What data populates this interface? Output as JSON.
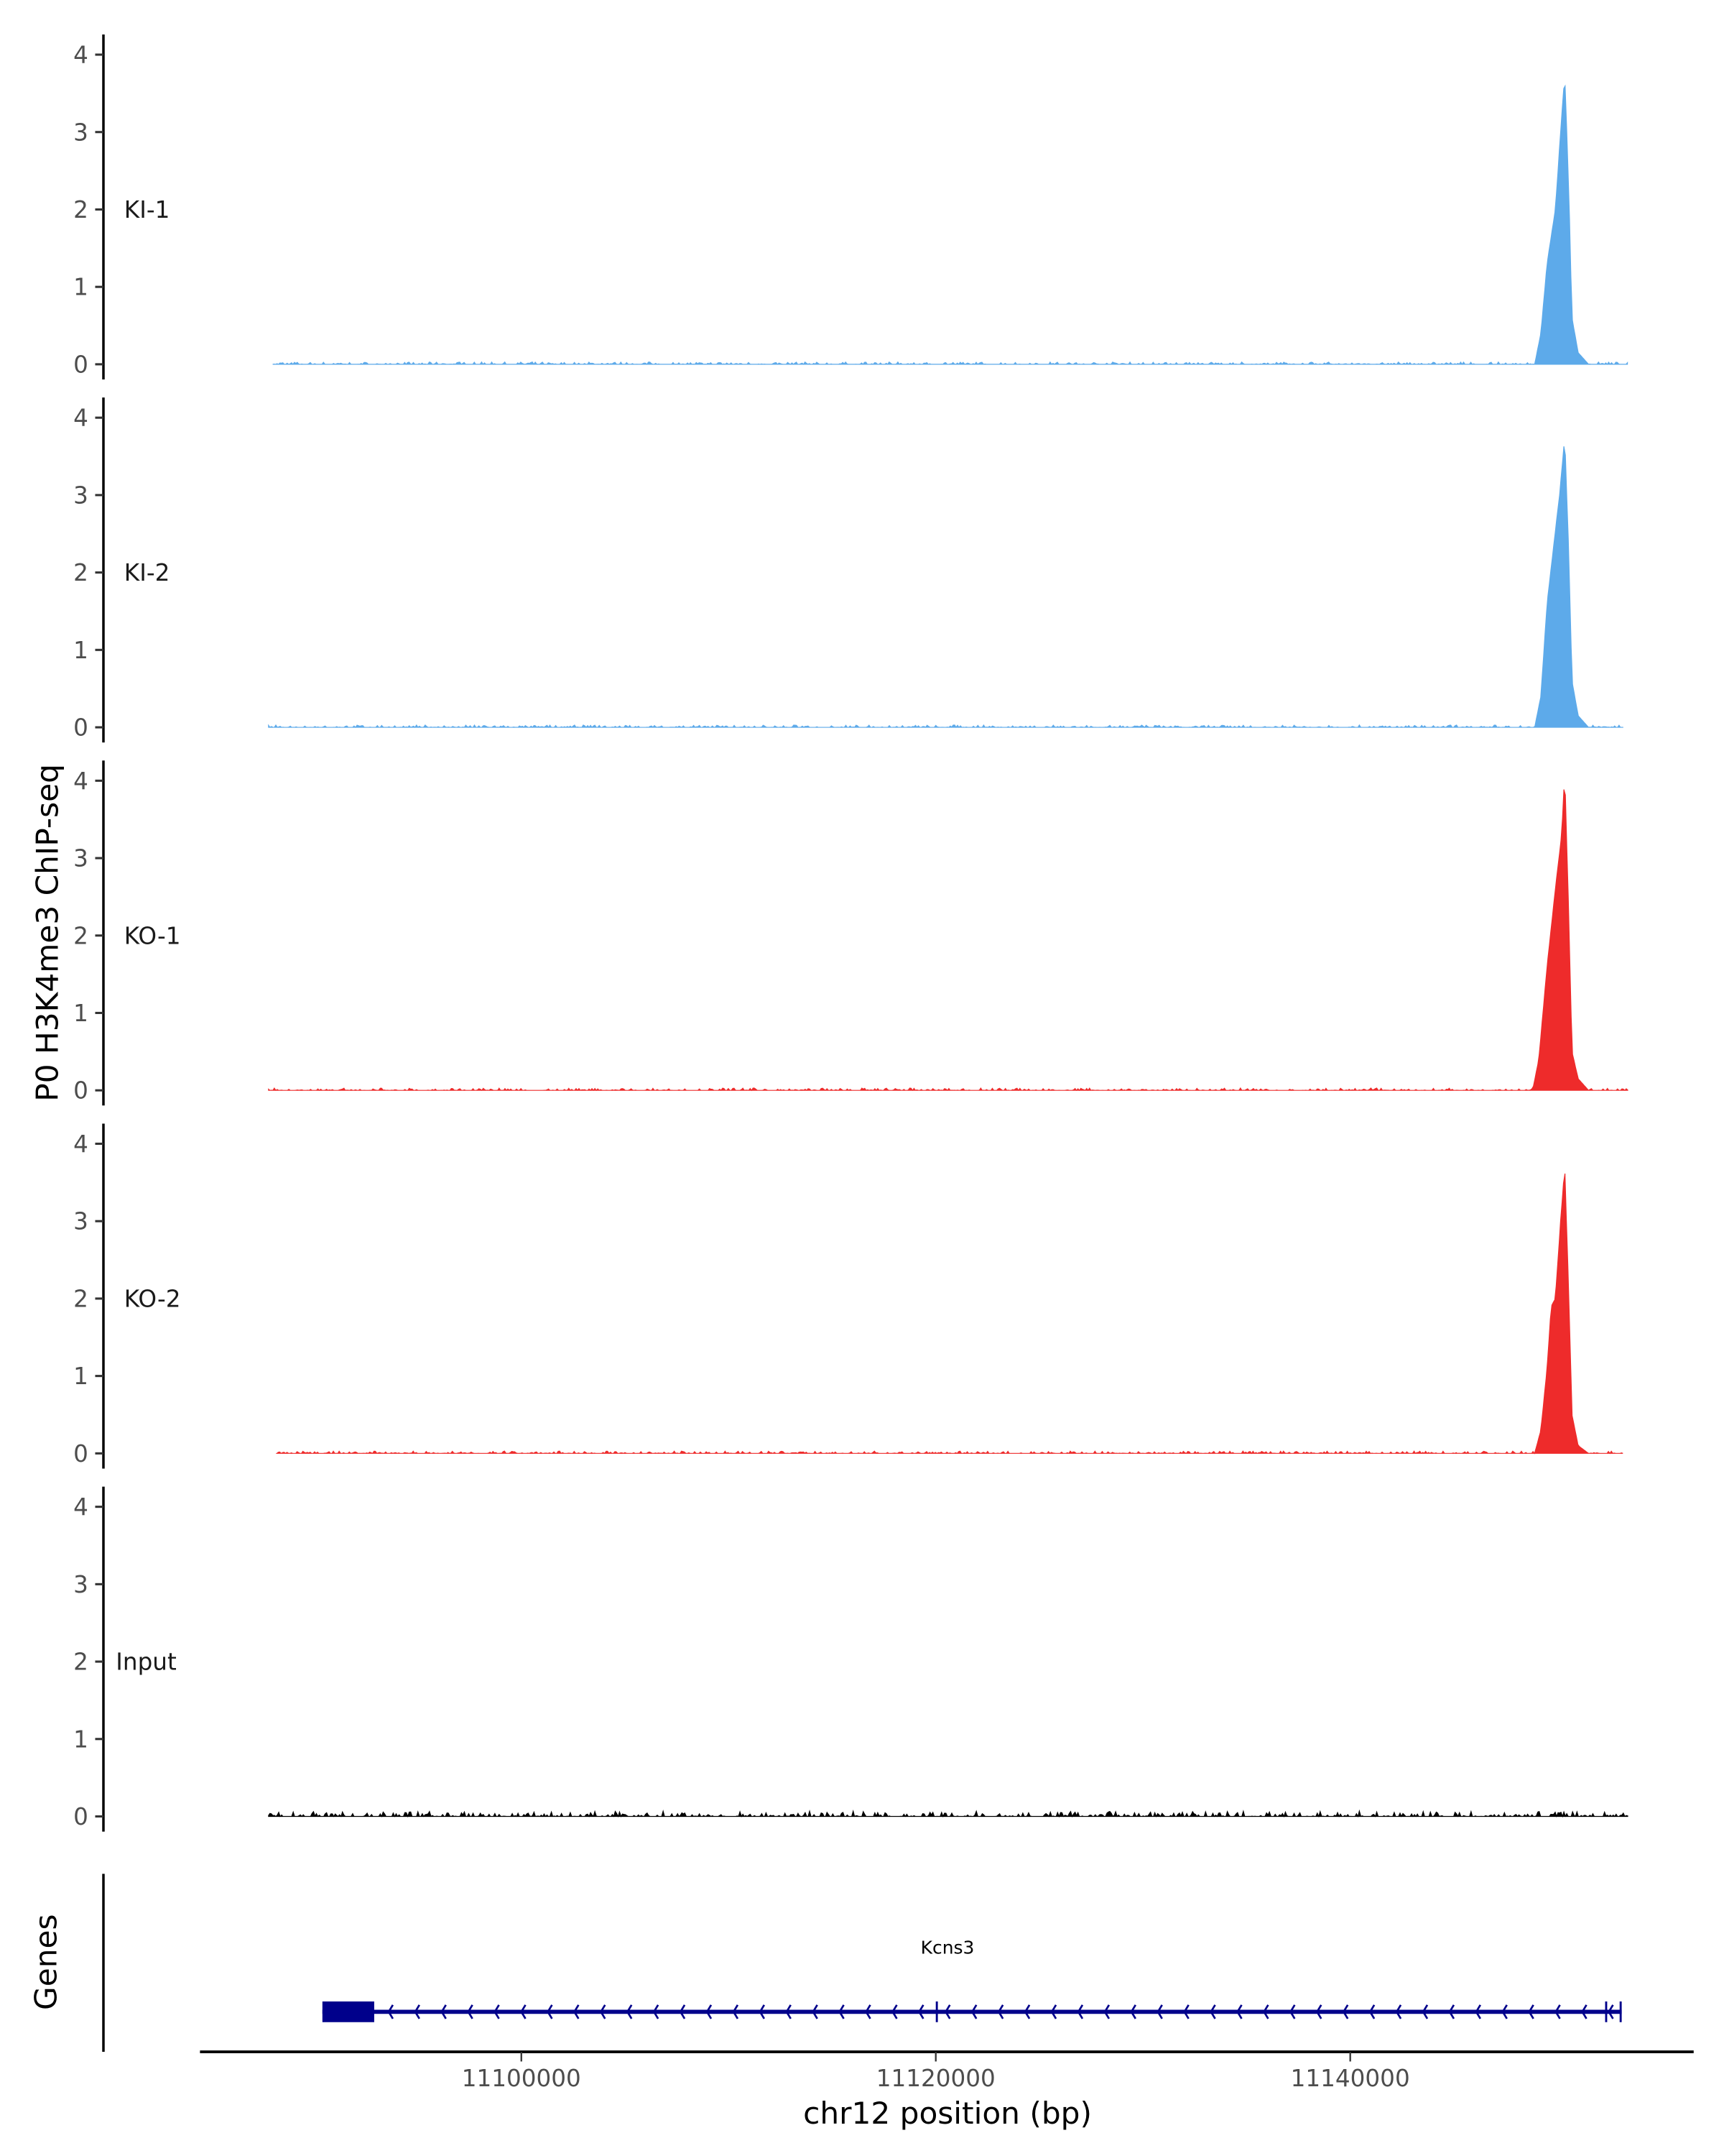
{
  "chart_data": {
    "type": "area",
    "title": "",
    "ylabel": "P0 H3K4me3 ChIP-seq",
    "xlabel": "chr12 position (bp)",
    "xlim": [
      11084000,
      11158000
    ],
    "x_ticks": [
      11100000,
      11120000,
      11140000
    ],
    "x_tick_labels": [
      "11100000",
      "11120000",
      "11140000"
    ],
    "ylim": [
      0,
      4.2
    ],
    "y_ticks": [
      0,
      1,
      2,
      3,
      4
    ],
    "y_tick_labels": [
      "0",
      "1",
      "2",
      "3",
      "4"
    ],
    "grid": false,
    "series": [
      {
        "name": "KI-1",
        "color": "#5DAAEA",
        "range": [
          11088000,
          11153400
        ],
        "noise": 0.03,
        "peak": [
          [
            11148900,
            0
          ],
          [
            11149200,
            0.4
          ],
          [
            11149500,
            1.3
          ],
          [
            11149900,
            2.0
          ],
          [
            11150150,
            3.0
          ],
          [
            11150350,
            3.75
          ],
          [
            11150550,
            2.2
          ],
          [
            11150700,
            0.6
          ],
          [
            11151000,
            0.15
          ],
          [
            11151500,
            0
          ]
        ]
      },
      {
        "name": "KI-2",
        "color": "#5DAAEA",
        "range": [
          11087800,
          11153200
        ],
        "noise": 0.03,
        "peak": [
          [
            11148900,
            0
          ],
          [
            11149200,
            0.4
          ],
          [
            11149500,
            1.6
          ],
          [
            11149800,
            2.3
          ],
          [
            11150100,
            3.0
          ],
          [
            11150350,
            3.75
          ],
          [
            11150550,
            2.2
          ],
          [
            11150700,
            0.6
          ],
          [
            11151000,
            0.15
          ],
          [
            11151500,
            0
          ]
        ]
      },
      {
        "name": "KO-1",
        "color": "#EE2B2B",
        "range": [
          11087800,
          11153400
        ],
        "noise": 0.03,
        "peak": [
          [
            11148800,
            0
          ],
          [
            11149100,
            0.4
          ],
          [
            11149500,
            1.6
          ],
          [
            11149900,
            2.6
          ],
          [
            11150200,
            3.3
          ],
          [
            11150350,
            4.1
          ],
          [
            11150550,
            2.2
          ],
          [
            11150700,
            0.5
          ],
          [
            11151000,
            0.15
          ],
          [
            11151500,
            0
          ]
        ]
      },
      {
        "name": "KO-2",
        "color": "#EE2B2B",
        "range": [
          11088200,
          11153200
        ],
        "noise": 0.03,
        "peak": [
          [
            11148900,
            0
          ],
          [
            11149200,
            0.3
          ],
          [
            11149500,
            1.1
          ],
          [
            11149700,
            1.9
          ],
          [
            11149900,
            2.0
          ],
          [
            11150150,
            3.0
          ],
          [
            11150350,
            3.7
          ],
          [
            11150550,
            2.0
          ],
          [
            11150700,
            0.5
          ],
          [
            11151000,
            0.1
          ],
          [
            11151500,
            0
          ]
        ]
      },
      {
        "name": "Input",
        "color": "#000000",
        "range": [
          11087800,
          11153400
        ],
        "noise": 0.07,
        "peak": []
      }
    ],
    "gene_track": {
      "title": "Genes",
      "gene": "Kcns3",
      "color": "#00008B",
      "strand": "-",
      "start": 11090400,
      "end": 11153100,
      "exons": [
        [
          11090400,
          11092900
        ],
        [
          11120000,
          11120100
        ],
        [
          11152300,
          11152400
        ],
        [
          11153000,
          11153100
        ]
      ]
    }
  }
}
